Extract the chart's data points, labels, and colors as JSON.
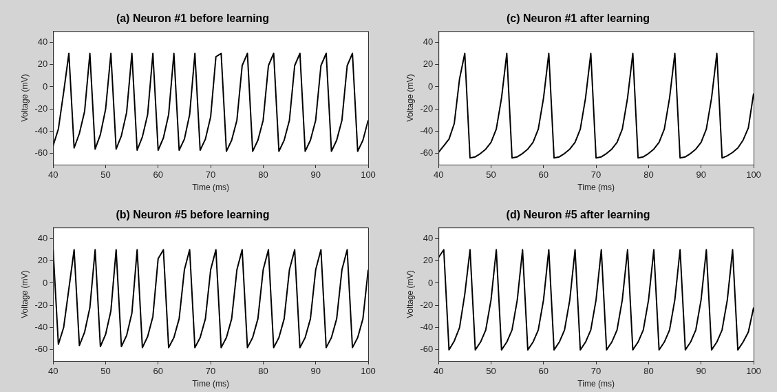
{
  "chart_data": [
    {
      "type": "line",
      "title": "(a) Neuron #1 before learning",
      "xlabel": "Time (ms)",
      "ylabel": "Voltage (mV)",
      "xlim": [
        40,
        100
      ],
      "ylim": [
        -70,
        50
      ],
      "xticks": [
        40,
        50,
        60,
        70,
        80,
        90,
        100
      ],
      "yticks": [
        -60,
        -40,
        -20,
        0,
        20,
        40
      ],
      "marker": "none",
      "color": "#000000",
      "x": [
        40,
        41,
        42,
        43,
        44,
        45,
        46,
        47,
        48,
        49,
        50,
        51,
        52,
        53,
        54,
        55,
        56,
        57,
        58,
        59,
        60,
        61,
        62,
        63,
        64,
        65,
        66,
        67,
        68,
        69,
        70,
        71,
        72,
        73,
        74,
        75,
        76,
        77,
        78,
        79,
        80,
        81,
        82,
        83,
        84,
        85,
        86,
        87,
        88,
        89,
        90,
        91,
        92,
        93,
        94,
        95,
        96,
        97,
        98,
        99,
        100
      ],
      "values": [
        -53,
        -38,
        -5,
        30,
        -55,
        -42,
        -22,
        30,
        -56,
        -43,
        -20,
        30,
        -56,
        -44,
        -23,
        30,
        -57,
        -45,
        -25,
        30,
        -57,
        -46,
        -25,
        30,
        -57,
        -47,
        -25,
        30,
        -57,
        -47,
        -27,
        27,
        30,
        -58,
        -48,
        -30,
        19,
        30,
        -58,
        -48,
        -30,
        19,
        30,
        -58,
        -48,
        -30,
        19,
        30,
        -58,
        -48,
        -30,
        19,
        30,
        -58,
        -48,
        -30,
        19,
        30,
        -58,
        -48,
        -30
      ]
    },
    {
      "type": "line",
      "title": "(c) Neuron #1 after learning",
      "xlabel": "Time (ms)",
      "ylabel": "Voltage (mV)",
      "xlim": [
        40,
        100
      ],
      "ylim": [
        -70,
        50
      ],
      "xticks": [
        40,
        50,
        60,
        70,
        80,
        90,
        100
      ],
      "yticks": [
        -60,
        -40,
        -20,
        0,
        20,
        40
      ],
      "marker": "none",
      "color": "#000000",
      "x": [
        40,
        41,
        42,
        43,
        44,
        45,
        46,
        47,
        48,
        49,
        50,
        51,
        52,
        53,
        54,
        55,
        56,
        57,
        58,
        59,
        60,
        61,
        62,
        63,
        64,
        65,
        66,
        67,
        68,
        69,
        70,
        71,
        72,
        73,
        74,
        75,
        76,
        77,
        78,
        79,
        80,
        81,
        82,
        83,
        84,
        85,
        86,
        87,
        88,
        89,
        90,
        91,
        92,
        93,
        94,
        95,
        96,
        97,
        98,
        99,
        100
      ],
      "values": [
        -59,
        -53,
        -47,
        -33,
        7,
        30,
        -64,
        -63,
        -60,
        -56,
        -50,
        -38,
        -10,
        30,
        -64,
        -63,
        -60,
        -56,
        -50,
        -38,
        -10,
        30,
        -64,
        -63,
        -60,
        -56,
        -50,
        -38,
        -10,
        30,
        -64,
        -63,
        -60,
        -56,
        -50,
        -38,
        -10,
        30,
        -64,
        -63,
        -60,
        -56,
        -50,
        -38,
        -10,
        30,
        -64,
        -63,
        -60,
        -56,
        -50,
        -38,
        -10,
        30,
        -64,
        -62,
        -59,
        -55,
        -48,
        -37,
        -6
      ]
    },
    {
      "type": "line",
      "title": "(b) Neuron #5 before learning",
      "xlabel": "Time (ms)",
      "ylabel": "Voltage (mV)",
      "xlim": [
        40,
        100
      ],
      "ylim": [
        -70,
        50
      ],
      "xticks": [
        40,
        50,
        60,
        70,
        80,
        90,
        100
      ],
      "yticks": [
        -60,
        -40,
        -20,
        0,
        20,
        40
      ],
      "marker": "none",
      "color": "#000000",
      "x": [
        40,
        41,
        42,
        43,
        44,
        45,
        46,
        47,
        48,
        49,
        50,
        51,
        52,
        53,
        54,
        55,
        56,
        57,
        58,
        59,
        60,
        61,
        62,
        63,
        64,
        65,
        66,
        67,
        68,
        69,
        70,
        71,
        72,
        73,
        74,
        75,
        76,
        77,
        78,
        79,
        80,
        81,
        82,
        83,
        84,
        85,
        86,
        87,
        88,
        89,
        90,
        91,
        92,
        93,
        94,
        95,
        96,
        97,
        98,
        99,
        100
      ],
      "values": [
        30,
        -55,
        -40,
        -5,
        30,
        -56,
        -44,
        -22,
        30,
        -57,
        -46,
        -25,
        30,
        -57,
        -47,
        -27,
        30,
        -58,
        -48,
        -30,
        22,
        30,
        -58,
        -49,
        -32,
        12,
        30,
        -58,
        -49,
        -32,
        12,
        30,
        -58,
        -49,
        -32,
        12,
        30,
        -58,
        -49,
        -32,
        12,
        30,
        -58,
        -49,
        -32,
        12,
        30,
        -58,
        -49,
        -32,
        12,
        30,
        -58,
        -49,
        -32,
        12,
        30,
        -58,
        -49,
        -32,
        12
      ]
    },
    {
      "type": "line",
      "title": "(d) Neuron #5 after learning",
      "xlabel": "Time (ms)",
      "ylabel": "Voltage (mV)",
      "xlim": [
        40,
        100
      ],
      "ylim": [
        -70,
        50
      ],
      "xticks": [
        40,
        50,
        60,
        70,
        80,
        90,
        100
      ],
      "yticks": [
        -60,
        -40,
        -20,
        0,
        20,
        40
      ],
      "marker": "none",
      "color": "#000000",
      "x": [
        40,
        41,
        42,
        43,
        44,
        45,
        46,
        47,
        48,
        49,
        50,
        51,
        52,
        53,
        54,
        55,
        56,
        57,
        58,
        59,
        60,
        61,
        62,
        63,
        64,
        65,
        66,
        67,
        68,
        69,
        70,
        71,
        72,
        73,
        74,
        75,
        76,
        77,
        78,
        79,
        80,
        81,
        82,
        83,
        84,
        85,
        86,
        87,
        88,
        89,
        90,
        91,
        92,
        93,
        94,
        95,
        96,
        97,
        98,
        99,
        100
      ],
      "values": [
        23,
        30,
        -60,
        -52,
        -40,
        -10,
        30,
        -60,
        -53,
        -42,
        -15,
        30,
        -60,
        -53,
        -42,
        -15,
        30,
        -60,
        -53,
        -42,
        -15,
        30,
        -60,
        -53,
        -42,
        -15,
        30,
        -60,
        -53,
        -42,
        -15,
        30,
        -60,
        -53,
        -42,
        -15,
        30,
        -60,
        -53,
        -42,
        -15,
        30,
        -60,
        -53,
        -42,
        -15,
        30,
        -60,
        -53,
        -42,
        -15,
        30,
        -60,
        -53,
        -42,
        -15,
        30,
        -60,
        -53,
        -44,
        -22
      ]
    }
  ]
}
